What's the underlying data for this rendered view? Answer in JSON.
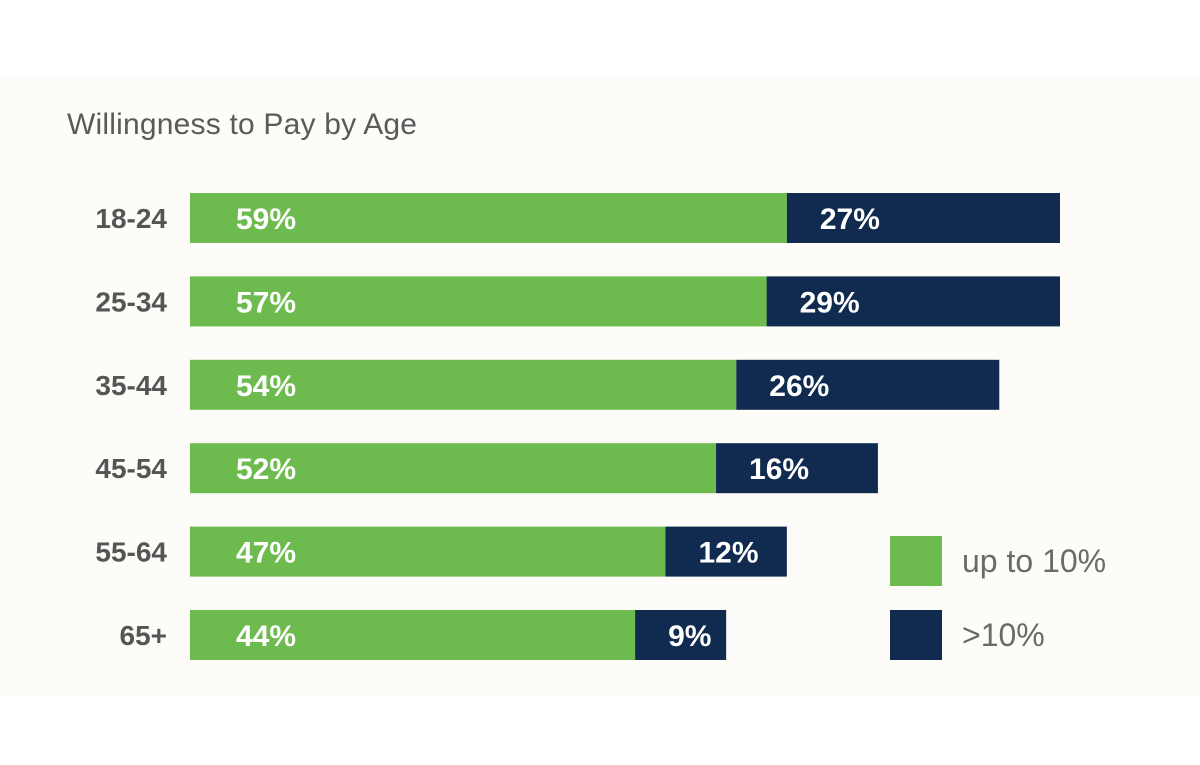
{
  "chart_data": {
    "type": "bar",
    "orientation": "horizontal",
    "stacked": true,
    "title": "Willingness to Pay by Age",
    "categories": [
      "18-24",
      "25-34",
      "35-44",
      "45-54",
      "55-64",
      "65+"
    ],
    "series": [
      {
        "name": "up to 10%",
        "color": "#6dbb4e",
        "values": [
          59,
          57,
          54,
          52,
          47,
          44
        ],
        "labels": [
          "59%",
          "57%",
          "54%",
          "52%",
          "47%",
          "44%"
        ]
      },
      {
        "name": ">10%",
        "color": "#112a4f",
        "values": [
          27,
          29,
          26,
          16,
          12,
          9
        ],
        "labels": [
          "27%",
          "29%",
          "26%",
          "16%",
          "12%",
          "9%"
        ]
      }
    ],
    "xlabel": "",
    "ylabel": "",
    "xlim": [
      0,
      86
    ],
    "grid": false,
    "legend_position": "bottom-right"
  }
}
